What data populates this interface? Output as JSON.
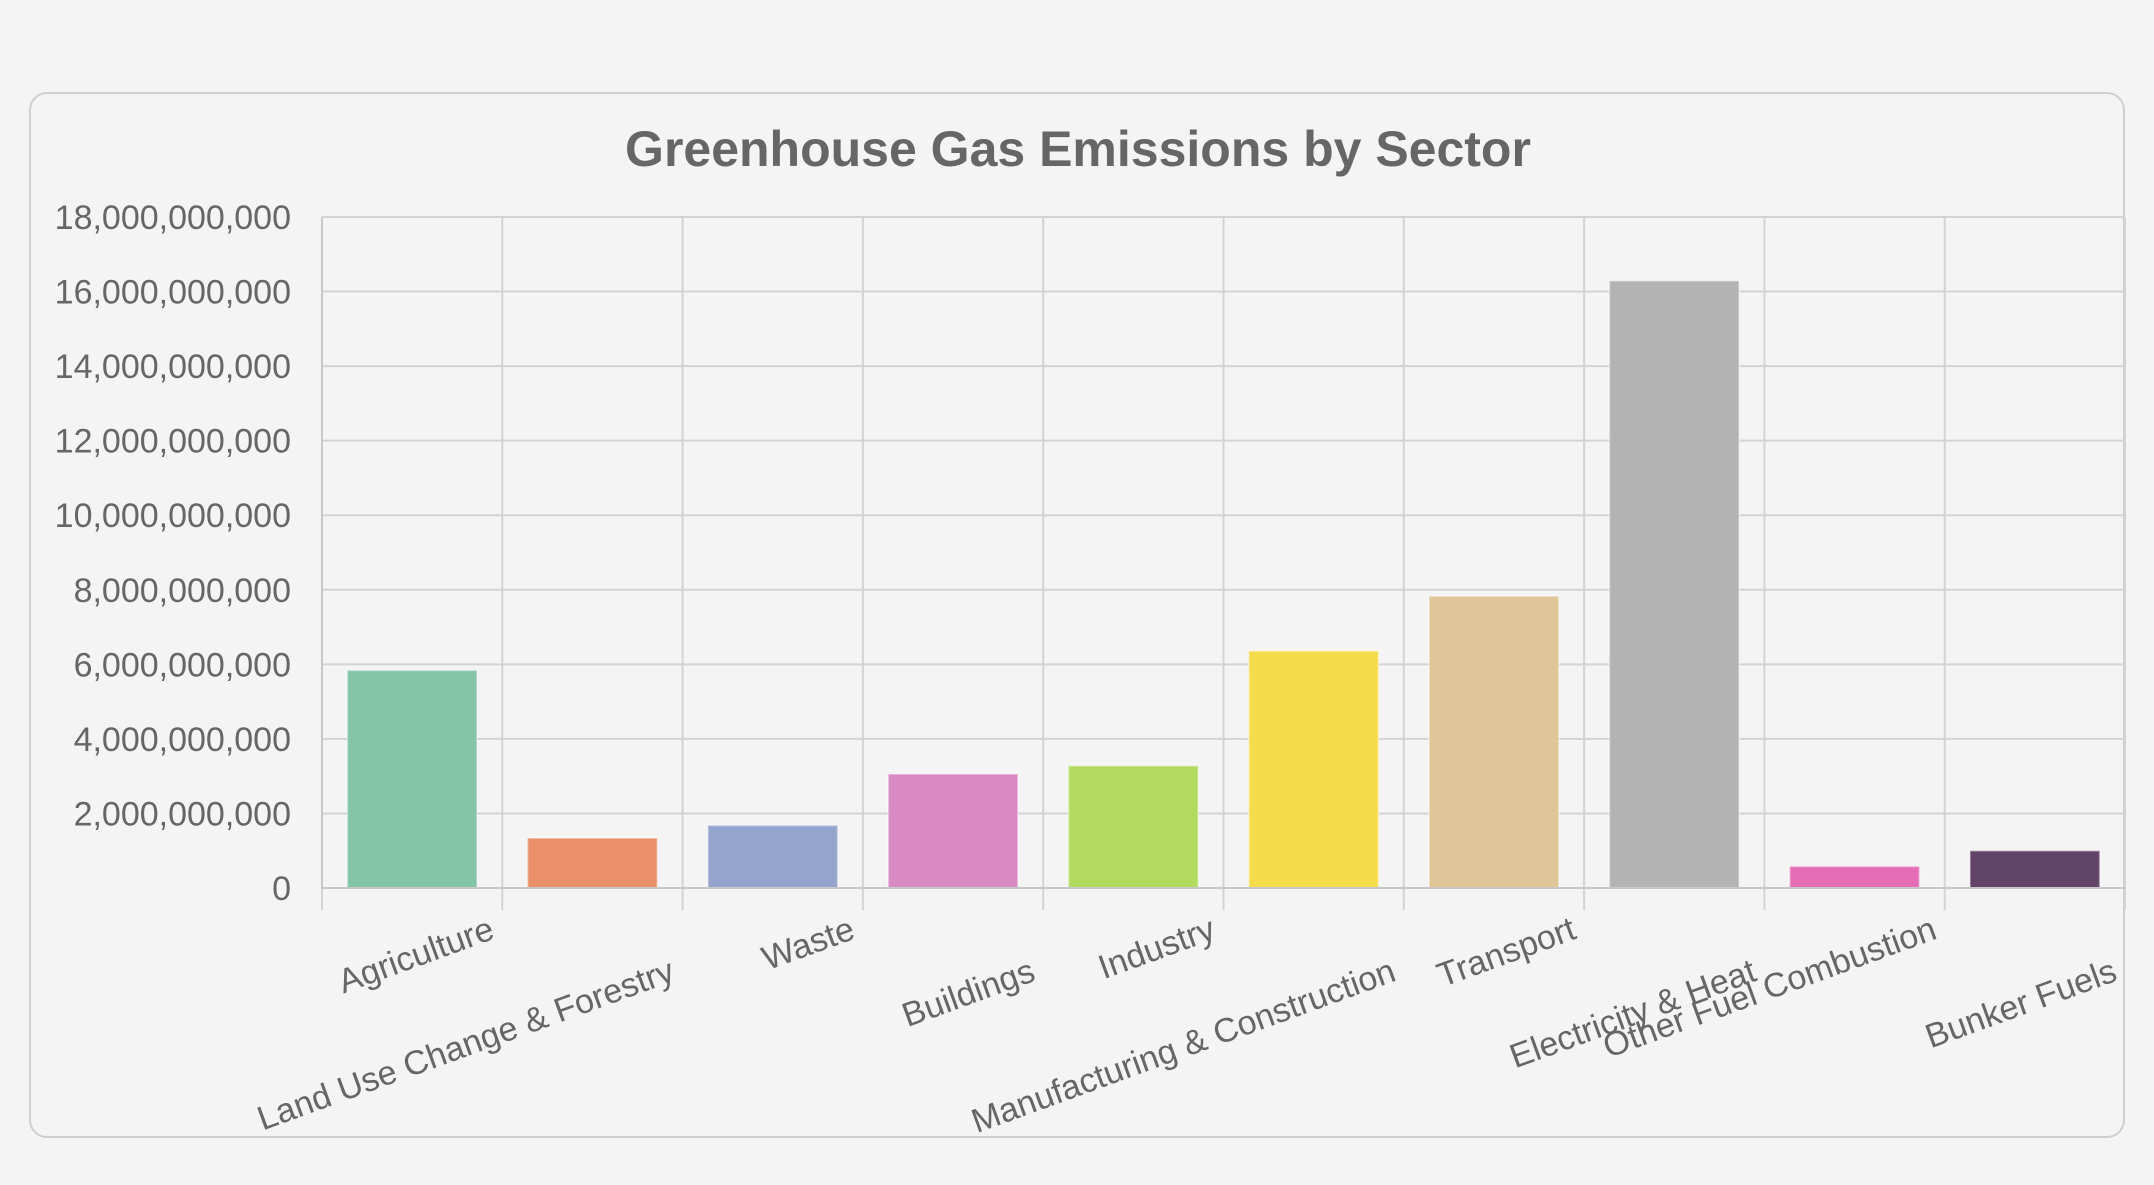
{
  "chart_data": {
    "type": "bar",
    "title": "Greenhouse Gas Emissions by Sector",
    "xlabel": "",
    "ylabel": "",
    "categories": [
      "Agriculture",
      "Land Use Change & Forestry",
      "Waste",
      "Buildings",
      "Industry",
      "Manufacturing & Construction",
      "Transport",
      "Electricity & Heat",
      "Other Fuel Combustion",
      "Bunker Fuels"
    ],
    "values": [
      5840000000,
      1340000000,
      1680000000,
      3060000000,
      3280000000,
      6360000000,
      7830000000,
      16290000000,
      580000000,
      1000000000
    ],
    "colors": [
      "#84c4a7",
      "#e98f69",
      "#95a4cc",
      "#d98ac3",
      "#b2da5f",
      "#f5dc4b",
      "#dfc597",
      "#b3b3b3",
      "#e46db6",
      "#634469"
    ],
    "ylim": [
      0,
      18000000000
    ],
    "yticks": [
      "0",
      "2,000,000,000",
      "4,000,000,000",
      "6,000,000,000",
      "8,000,000,000",
      "10,000,000,000",
      "12,000,000,000",
      "14,000,000,000",
      "16,000,000,000",
      "18,000,000,000"
    ],
    "grid": true,
    "legend": "none"
  }
}
